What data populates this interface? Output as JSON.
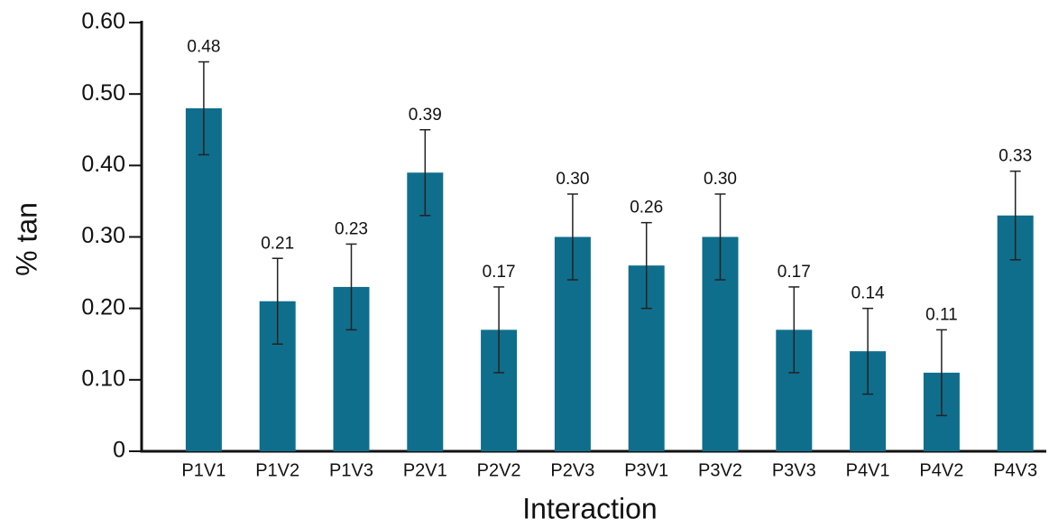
{
  "chart_data": {
    "type": "bar",
    "ylabel": "% tan",
    "xlabel": "Interaction",
    "categories": [
      "P1V1",
      "P1V2",
      "P1V3",
      "P2V1",
      "P2V2",
      "P2V3",
      "P3V1",
      "P3V2",
      "P3V3",
      "P4V1",
      "P4V2",
      "P4V3"
    ],
    "values": [
      0.48,
      0.21,
      0.23,
      0.39,
      0.17,
      0.3,
      0.26,
      0.3,
      0.17,
      0.14,
      0.11,
      0.33
    ],
    "value_labels": [
      "0.48",
      "0.21",
      "0.23",
      "0.39",
      "0.17",
      "0.30",
      "0.26",
      "0.30",
      "0.17",
      "0.14",
      "0.11",
      "0.33"
    ],
    "errors": [
      0.065,
      0.06,
      0.06,
      0.06,
      0.06,
      0.06,
      0.06,
      0.06,
      0.06,
      0.06,
      0.06,
      0.062
    ],
    "color": "#0f6e8c",
    "ylim": [
      0,
      0.6
    ],
    "yticks": [
      0,
      {
        "value": 0.1,
        "label": "0.10"
      },
      {
        "value": 0.2,
        "label": "0.20"
      },
      {
        "value": 0.3,
        "label": "0.30"
      },
      {
        "value": 0.4,
        "label": "0.40"
      },
      {
        "value": 0.5,
        "label": "0.50"
      },
      {
        "value": 0.6,
        "label": "0.60"
      }
    ],
    "grid": false
  }
}
